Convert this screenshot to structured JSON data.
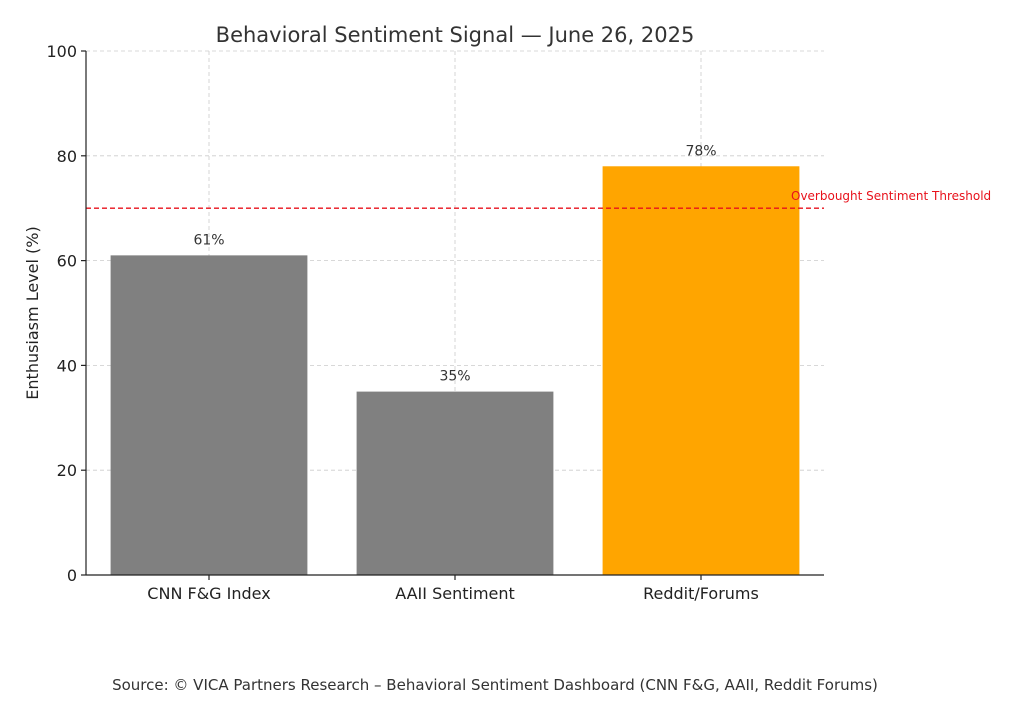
{
  "chart_data": {
    "type": "bar",
    "title": "Behavioral Sentiment Signal — June 26, 2025",
    "xlabel": "",
    "ylabel": "Enthusiasm Level (%)",
    "categories": [
      "CNN F&G Index",
      "AAII Sentiment",
      "Reddit/Forums"
    ],
    "values": [
      61,
      35,
      78
    ],
    "value_labels": [
      "61%",
      "35%",
      "78%"
    ],
    "bar_colors": [
      "#808080",
      "#808080",
      "#FFA500"
    ],
    "ylim": [
      0,
      100
    ],
    "yticks": [
      0,
      20,
      40,
      60,
      80,
      100
    ],
    "grid": true,
    "threshold": {
      "value": 70,
      "label": "Overbought Sentiment Threshold",
      "color": "#e8111b"
    }
  },
  "source": "Source: © VICA Partners Research – Behavioral Sentiment Dashboard (CNN F&G, AAII, Reddit Forums)"
}
